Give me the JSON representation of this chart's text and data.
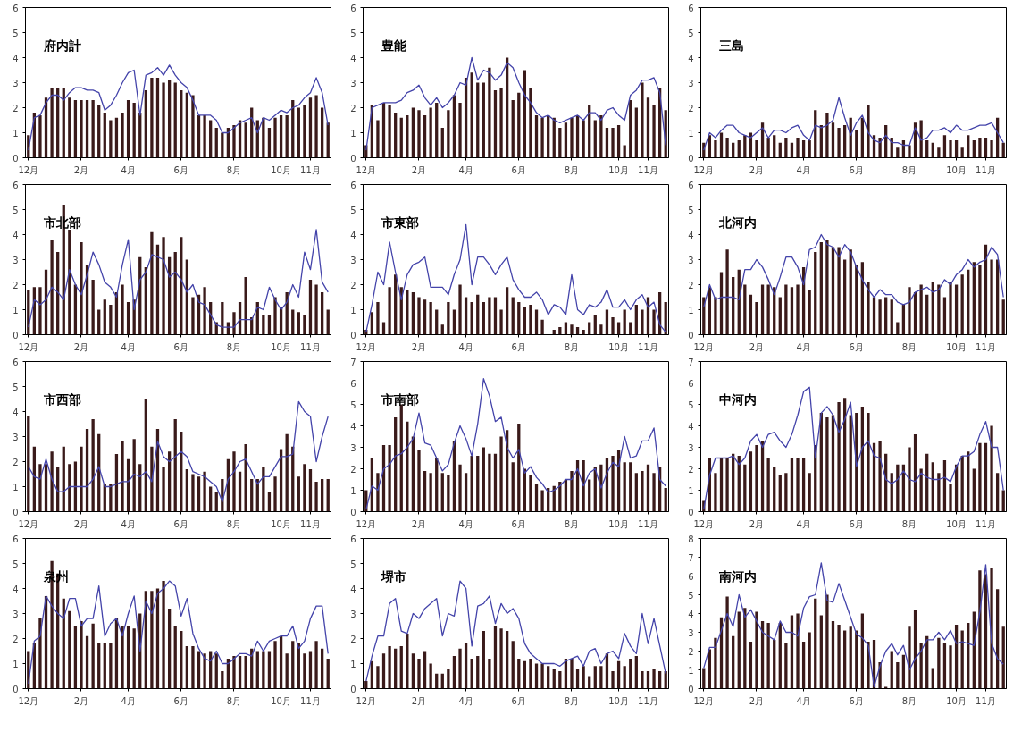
{
  "chart_data": [
    {
      "type": "bar",
      "title": "府内計",
      "categories": [
        "12月",
        null,
        null,
        null,
        null,
        null,
        null,
        null,
        null,
        "2月",
        null,
        null,
        null,
        null,
        null,
        null,
        null,
        "4月",
        null,
        null,
        null,
        null,
        null,
        null,
        null,
        null,
        "6月",
        null,
        null,
        null,
        null,
        null,
        null,
        null,
        null,
        "8月",
        null,
        null,
        null,
        null,
        null,
        null,
        null,
        "10月",
        null,
        null,
        null,
        null,
        "11月",
        null,
        null,
        null
      ],
      "ylim": [
        0,
        6
      ],
      "yticks": [
        0,
        1,
        2,
        3,
        4,
        5,
        6
      ],
      "series": [
        {
          "color": "#3a1a1a",
          "values": [
            0.9,
            1.8,
            1.7,
            2.4,
            2.8,
            2.8,
            2.8,
            2.4,
            2.3,
            2.3,
            2.3,
            2.3,
            2.1,
            1.8,
            1.5,
            1.6,
            1.8,
            2.3,
            2.2,
            1.8,
            2.7,
            3.2,
            3.2,
            3.0,
            3.1,
            3.0,
            2.7,
            2.6,
            2.5,
            1.7,
            1.7,
            1.5,
            1.2,
            1.0,
            1.2,
            1.3,
            1.5,
            1.4,
            2.0,
            1.5,
            1.6,
            1.2,
            1.6,
            1.7,
            1.7,
            2.3,
            2.0,
            2.1,
            2.4,
            2.5,
            2.0,
            1.4
          ]
        },
        {
          "type": "line",
          "color": "#4444aa",
          "values": [
            0.3,
            1.6,
            1.7,
            2.2,
            2.5,
            2.5,
            2.3,
            2.6,
            2.8,
            2.8,
            2.7,
            2.7,
            2.6,
            1.9,
            2.1,
            2.5,
            3.0,
            3.4,
            3.5,
            1.7,
            3.3,
            3.4,
            3.6,
            3.3,
            3.7,
            3.3,
            3.0,
            2.8,
            2.3,
            1.7,
            1.7,
            1.7,
            1.5,
            1.0,
            1.0,
            1.2,
            1.4,
            1.5,
            1.6,
            1.0,
            1.6,
            1.5,
            1.7,
            1.9,
            1.8,
            2.0,
            2.1,
            2.4,
            2.6,
            3.2,
            2.6,
            1.3
          ]
        }
      ]
    },
    {
      "type": "bar",
      "title": "豊能",
      "categories": [
        "12月",
        null,
        null,
        null,
        null,
        null,
        null,
        null,
        null,
        "2月",
        null,
        null,
        null,
        null,
        null,
        null,
        null,
        "4月",
        null,
        null,
        null,
        null,
        null,
        null,
        null,
        null,
        "6月",
        null,
        null,
        null,
        null,
        null,
        null,
        null,
        null,
        "8月",
        null,
        null,
        null,
        null,
        null,
        null,
        null,
        "10月",
        null,
        null,
        null,
        null,
        "11月",
        null,
        null,
        null
      ],
      "ylim": [
        0,
        6
      ],
      "yticks": [
        0,
        1,
        2,
        3,
        4,
        5,
        6
      ],
      "series": [
        {
          "color": "#3a1a1a",
          "values": [
            0.5,
            2.1,
            1.5,
            2.2,
            2.1,
            1.8,
            1.6,
            1.7,
            2.0,
            1.9,
            1.7,
            2.0,
            2.2,
            1.2,
            1.9,
            2.5,
            2.2,
            3.2,
            3.4,
            3.0,
            3.0,
            3.6,
            2.7,
            2.8,
            4.0,
            2.3,
            2.6,
            3.5,
            2.8,
            1.7,
            1.6,
            1.7,
            1.6,
            1.2,
            1.4,
            1.6,
            1.7,
            1.5,
            2.1,
            1.5,
            1.7,
            1.2,
            1.2,
            1.3,
            0.5,
            2.3,
            2.0,
            3.0,
            2.4,
            2.1,
            2.8,
            1.9
          ]
        },
        {
          "type": "line",
          "color": "#4444aa",
          "values": [
            0.3,
            2.0,
            2.1,
            2.2,
            2.2,
            2.2,
            2.3,
            2.6,
            2.7,
            2.9,
            2.4,
            2.1,
            2.4,
            2.0,
            2.2,
            2.5,
            3.0,
            2.9,
            4.0,
            3.1,
            3.5,
            3.4,
            3.1,
            3.3,
            3.8,
            3.6,
            3.0,
            2.5,
            2.2,
            1.8,
            1.6,
            1.7,
            1.5,
            1.4,
            1.5,
            1.6,
            1.7,
            1.5,
            1.8,
            1.8,
            1.5,
            1.9,
            2.0,
            1.7,
            1.5,
            2.5,
            2.7,
            3.1,
            3.1,
            3.2,
            2.6,
            0.5
          ]
        }
      ]
    },
    {
      "type": "bar",
      "title": "三島",
      "categories": [
        "12月",
        null,
        null,
        null,
        null,
        null,
        null,
        null,
        null,
        "2月",
        null,
        null,
        null,
        null,
        null,
        null,
        null,
        "4月",
        null,
        null,
        null,
        null,
        null,
        null,
        null,
        null,
        "6月",
        null,
        null,
        null,
        null,
        null,
        null,
        null,
        null,
        "8月",
        null,
        null,
        null,
        null,
        null,
        null,
        null,
        "10月",
        null,
        null,
        null,
        null,
        "11月",
        null,
        null,
        null
      ],
      "ylim": [
        0,
        6
      ],
      "yticks": [
        0,
        1,
        2,
        3,
        4,
        5,
        6
      ],
      "series": [
        {
          "color": "#3a1a1a",
          "values": [
            0.6,
            0.9,
            0.7,
            1.0,
            0.8,
            0.6,
            0.7,
            0.9,
            1.0,
            0.7,
            1.4,
            0.8,
            0.9,
            0.6,
            0.8,
            0.6,
            0.8,
            0.7,
            0.7,
            1.9,
            1.3,
            1.8,
            1.4,
            1.2,
            1.3,
            1.6,
            1.1,
            1.6,
            2.1,
            0.9,
            0.8,
            1.3,
            0.8,
            0.4,
            0.7,
            0.5,
            1.4,
            1.5,
            0.7,
            0.6,
            0.4,
            0.9,
            0.7,
            0.7,
            0.4,
            0.9,
            0.7,
            0.8,
            0.8,
            0.7,
            1.6,
            0.6
          ]
        },
        {
          "type": "line",
          "color": "#4444aa",
          "values": [
            0.3,
            1.0,
            0.8,
            1.1,
            1.3,
            1.3,
            1.0,
            0.9,
            0.8,
            1.0,
            1.2,
            0.8,
            1.1,
            1.1,
            1.0,
            1.2,
            1.3,
            0.9,
            0.7,
            1.3,
            1.2,
            1.3,
            1.5,
            2.4,
            1.6,
            0.9,
            1.4,
            1.7,
            1.0,
            0.7,
            0.6,
            0.9,
            0.6,
            0.6,
            0.5,
            0.5,
            1.2,
            0.7,
            0.8,
            1.1,
            1.1,
            1.2,
            1.0,
            1.3,
            1.1,
            1.1,
            1.2,
            1.3,
            1.3,
            1.4,
            1.0,
            0.6
          ]
        }
      ]
    },
    {
      "type": "bar",
      "title": "市北部",
      "categories": [
        "12月",
        null,
        null,
        null,
        null,
        null,
        null,
        null,
        null,
        "2月",
        null,
        null,
        null,
        null,
        null,
        null,
        null,
        "4月",
        null,
        null,
        null,
        null,
        null,
        null,
        null,
        null,
        "6月",
        null,
        null,
        null,
        null,
        null,
        null,
        null,
        null,
        "8月",
        null,
        null,
        null,
        null,
        null,
        null,
        null,
        "10月",
        null,
        null,
        null,
        null,
        "11月",
        null,
        null,
        null
      ],
      "ylim": [
        0,
        6
      ],
      "yticks": [
        0,
        1,
        2,
        3,
        4,
        5,
        6
      ],
      "series": [
        {
          "color": "#3a1a1a",
          "values": [
            1.8,
            1.9,
            1.9,
            2.6,
            3.8,
            3.3,
            5.2,
            4.2,
            2.0,
            3.7,
            2.8,
            2.2,
            1.0,
            1.4,
            1.2,
            1.7,
            2.0,
            1.3,
            1.4,
            3.1,
            2.7,
            4.1,
            3.6,
            3.9,
            3.1,
            3.3,
            3.9,
            3.0,
            1.5,
            1.6,
            1.9,
            1.3,
            0.5,
            1.3,
            0.5,
            0.9,
            1.3,
            2.3,
            0.7,
            1.3,
            0.8,
            0.8,
            1.5,
            1.1,
            1.7,
            1.0,
            0.9,
            0.8,
            2.2,
            2.0,
            1.7,
            1.0
          ]
        },
        {
          "type": "line",
          "color": "#4444aa",
          "values": [
            0.3,
            1.4,
            1.2,
            1.4,
            1.9,
            1.7,
            1.4,
            2.6,
            2.0,
            1.6,
            2.4,
            3.3,
            2.8,
            2.1,
            1.9,
            1.5,
            2.8,
            3.8,
            1.0,
            2.2,
            2.5,
            3.2,
            3.1,
            3.0,
            2.3,
            2.5,
            2.2,
            1.7,
            2.0,
            1.3,
            1.2,
            0.8,
            0.4,
            0.3,
            0.3,
            0.3,
            0.6,
            0.6,
            0.6,
            1.1,
            1.0,
            1.9,
            1.4,
            1.0,
            1.3,
            2.0,
            1.5,
            3.3,
            2.6,
            4.2,
            2.1,
            1.7
          ]
        }
      ]
    },
    {
      "type": "bar",
      "title": "市東部",
      "categories": [
        "12月",
        null,
        null,
        null,
        null,
        null,
        null,
        null,
        null,
        "2月",
        null,
        null,
        null,
        null,
        null,
        null,
        null,
        "4月",
        null,
        null,
        null,
        null,
        null,
        null,
        null,
        null,
        "6月",
        null,
        null,
        null,
        null,
        null,
        null,
        null,
        null,
        "8月",
        null,
        null,
        null,
        null,
        null,
        null,
        null,
        "10月",
        null,
        null,
        null,
        null,
        "11月",
        null,
        null,
        null
      ],
      "ylim": [
        0,
        6
      ],
      "yticks": [
        0,
        1,
        2,
        3,
        4,
        5,
        6
      ],
      "series": [
        {
          "color": "#3a1a1a",
          "values": [
            0.2,
            0.9,
            1.3,
            0.5,
            1.9,
            2.4,
            1.9,
            1.8,
            1.7,
            1.5,
            1.4,
            1.3,
            1.0,
            0.4,
            1.3,
            1.0,
            2.0,
            1.5,
            1.3,
            1.6,
            1.3,
            1.5,
            1.5,
            1.0,
            1.9,
            1.5,
            1.3,
            1.1,
            1.2,
            1.0,
            0.6,
            0.0,
            0.2,
            0.3,
            0.5,
            0.4,
            0.3,
            0.2,
            0.5,
            0.8,
            0.4,
            1.0,
            0.7,
            0.5,
            1.0,
            0.5,
            1.2,
            1.0,
            1.5,
            1.0,
            1.7,
            1.3
          ]
        },
        {
          "type": "line",
          "color": "#4444aa",
          "values": [
            0.1,
            1.2,
            2.5,
            2.0,
            3.7,
            2.5,
            1.4,
            2.4,
            2.8,
            2.9,
            3.1,
            1.9,
            1.9,
            1.9,
            1.6,
            2.4,
            3.0,
            4.4,
            2.0,
            3.1,
            3.1,
            2.8,
            2.4,
            2.8,
            3.1,
            2.2,
            1.8,
            1.5,
            1.5,
            1.7,
            1.4,
            0.8,
            1.2,
            1.1,
            0.8,
            2.4,
            1.0,
            0.8,
            1.2,
            1.1,
            1.3,
            1.8,
            1.1,
            1.1,
            1.4,
            1.0,
            1.4,
            1.6,
            1.1,
            1.3,
            0.4,
            0.1
          ]
        }
      ]
    },
    {
      "type": "bar",
      "title": "北河内",
      "categories": [
        "12月",
        null,
        null,
        null,
        null,
        null,
        null,
        null,
        null,
        "2月",
        null,
        null,
        null,
        null,
        null,
        null,
        null,
        "4月",
        null,
        null,
        null,
        null,
        null,
        null,
        null,
        null,
        "6月",
        null,
        null,
        null,
        null,
        null,
        null,
        null,
        null,
        "8月",
        null,
        null,
        null,
        null,
        null,
        null,
        null,
        "10月",
        null,
        null,
        null,
        null,
        "11月",
        null,
        null,
        null
      ],
      "ylim": [
        0,
        6
      ],
      "yticks": [
        0,
        1,
        2,
        3,
        4,
        5,
        6
      ],
      "series": [
        {
          "color": "#3a1a1a",
          "values": [
            1.5,
            1.9,
            1.5,
            2.5,
            3.4,
            2.3,
            2.6,
            2.0,
            1.6,
            1.3,
            2.0,
            2.0,
            1.9,
            1.5,
            2.0,
            1.9,
            2.0,
            2.7,
            1.8,
            3.3,
            3.7,
            3.8,
            3.5,
            3.5,
            3.0,
            3.4,
            2.8,
            2.9,
            2.1,
            1.5,
            1.4,
            1.5,
            1.4,
            0.5,
            1.2,
            1.9,
            1.7,
            2.0,
            1.6,
            2.1,
            2.0,
            1.5,
            2.1,
            2.0,
            2.4,
            2.6,
            2.9,
            2.8,
            3.6,
            3.0,
            3.0,
            1.4
          ]
        },
        {
          "type": "line",
          "color": "#4444aa",
          "values": [
            1.1,
            2.0,
            1.4,
            1.5,
            1.5,
            1.5,
            1.4,
            2.6,
            2.6,
            3.0,
            2.7,
            2.2,
            1.6,
            2.3,
            3.1,
            3.1,
            2.7,
            2.0,
            3.4,
            3.5,
            4.0,
            3.6,
            3.5,
            3.1,
            3.6,
            3.3,
            2.7,
            2.2,
            1.8,
            1.5,
            1.8,
            1.6,
            1.6,
            1.3,
            1.2,
            1.3,
            1.7,
            1.8,
            1.9,
            1.7,
            1.8,
            2.2,
            2.0,
            2.4,
            2.6,
            3.0,
            2.7,
            2.9,
            3.0,
            3.5,
            3.2,
            1.5
          ]
        }
      ]
    },
    {
      "type": "bar",
      "title": "市西部",
      "categories": [
        "12月",
        null,
        null,
        null,
        null,
        null,
        null,
        null,
        null,
        "2月",
        null,
        null,
        null,
        null,
        null,
        null,
        null,
        "4月",
        null,
        null,
        null,
        null,
        null,
        null,
        null,
        null,
        "6月",
        null,
        null,
        null,
        null,
        null,
        null,
        null,
        null,
        "8月",
        null,
        null,
        null,
        null,
        null,
        null,
        null,
        "10月",
        null,
        null,
        null,
        null,
        "11月",
        null,
        null,
        null
      ],
      "ylim": [
        0,
        6
      ],
      "yticks": [
        0,
        1,
        2,
        3,
        4,
        5,
        6
      ],
      "series": [
        {
          "color": "#3a1a1a",
          "values": [
            3.8,
            2.6,
            1.9,
            1.9,
            2.4,
            1.8,
            2.6,
            1.9,
            2.0,
            2.6,
            3.3,
            3.7,
            3.1,
            1.1,
            1.1,
            2.3,
            2.8,
            2.1,
            2.9,
            1.9,
            4.5,
            2.6,
            3.3,
            1.8,
            2.4,
            3.7,
            3.2,
            1.7,
            1.5,
            1.4,
            1.6,
            1.0,
            0.8,
            1.3,
            2.1,
            2.4,
            1.6,
            2.7,
            1.3,
            1.3,
            1.8,
            0.8,
            1.4,
            2.5,
            3.1,
            2.6,
            1.4,
            1.9,
            1.7,
            1.2,
            1.3,
            1.3
          ]
        },
        {
          "type": "line",
          "color": "#4444aa",
          "values": [
            1.8,
            1.4,
            1.3,
            2.1,
            1.3,
            0.8,
            0.8,
            1.0,
            1.0,
            1.0,
            1.0,
            1.3,
            1.8,
            1.0,
            1.0,
            1.1,
            1.2,
            1.2,
            1.5,
            1.4,
            1.6,
            1.2,
            2.8,
            2.2,
            2.0,
            2.2,
            2.4,
            2.2,
            1.6,
            1.5,
            1.4,
            1.2,
            1.0,
            0.4,
            1.3,
            1.6,
            2.0,
            2.1,
            1.6,
            1.1,
            1.4,
            1.4,
            1.8,
            2.2,
            2.2,
            2.3,
            4.4,
            4.0,
            3.8,
            2.0,
            3.0,
            3.8
          ]
        }
      ]
    },
    {
      "type": "bar",
      "title": "市南部",
      "categories": [
        "12月",
        null,
        null,
        null,
        null,
        null,
        null,
        null,
        null,
        "2月",
        null,
        null,
        null,
        null,
        null,
        null,
        null,
        "4月",
        null,
        null,
        null,
        null,
        null,
        null,
        null,
        null,
        "6月",
        null,
        null,
        null,
        null,
        null,
        null,
        null,
        null,
        "8月",
        null,
        null,
        null,
        null,
        null,
        null,
        null,
        "10月",
        null,
        null,
        null,
        null,
        "11月",
        null,
        null,
        null
      ],
      "ylim": [
        0,
        7
      ],
      "yticks": [
        0,
        1,
        2,
        3,
        4,
        5,
        6,
        7
      ],
      "series": [
        {
          "color": "#3a1a1a",
          "values": [
            1.0,
            2.5,
            1.8,
            3.1,
            3.1,
            4.4,
            5.0,
            4.2,
            3.5,
            2.9,
            1.9,
            1.8,
            2.5,
            1.8,
            1.7,
            3.3,
            2.2,
            1.8,
            2.6,
            2.6,
            3.0,
            2.7,
            2.7,
            3.5,
            3.8,
            2.3,
            4.1,
            2.0,
            1.7,
            1.3,
            1.0,
            1.1,
            1.2,
            1.4,
            1.5,
            1.9,
            2.4,
            2.4,
            1.5,
            2.1,
            2.2,
            2.5,
            2.6,
            2.9,
            2.3,
            2.3,
            1.8,
            1.9,
            2.2,
            1.8,
            2.1,
            1.1
          ]
        },
        {
          "type": "line",
          "color": "#4444aa",
          "values": [
            0.1,
            1.2,
            1.0,
            2.0,
            2.2,
            2.6,
            2.7,
            3.0,
            3.4,
            4.6,
            3.2,
            3.1,
            2.5,
            1.9,
            2.2,
            3.2,
            4.0,
            3.4,
            2.6,
            4.1,
            6.2,
            5.4,
            4.2,
            4.4,
            3.0,
            2.5,
            2.9,
            1.8,
            2.1,
            1.6,
            1.3,
            0.9,
            1.0,
            1.2,
            1.5,
            1.5,
            2.0,
            1.2,
            1.8,
            2.0,
            1.1,
            1.8,
            2.3,
            2.1,
            3.5,
            2.5,
            2.6,
            3.3,
            3.3,
            3.9,
            1.5,
            1.2
          ]
        }
      ]
    },
    {
      "type": "bar",
      "title": "中河内",
      "categories": [
        "12月",
        null,
        null,
        null,
        null,
        null,
        null,
        null,
        null,
        "2月",
        null,
        null,
        null,
        null,
        null,
        null,
        null,
        "4月",
        null,
        null,
        null,
        null,
        null,
        null,
        null,
        null,
        "6月",
        null,
        null,
        null,
        null,
        null,
        null,
        null,
        null,
        "8月",
        null,
        null,
        null,
        null,
        null,
        null,
        null,
        "10月",
        null,
        null,
        null,
        null,
        "11月",
        null,
        null,
        null
      ],
      "ylim": [
        0,
        7
      ],
      "yticks": [
        0,
        1,
        2,
        3,
        4,
        5,
        6,
        7
      ],
      "series": [
        {
          "color": "#3a1a1a",
          "values": [
            0.5,
            2.5,
            1.8,
            2.5,
            2.5,
            2.7,
            2.6,
            2.2,
            2.8,
            3.1,
            3.3,
            2.5,
            2.1,
            1.7,
            1.8,
            2.5,
            2.5,
            2.5,
            1.8,
            3.1,
            4.6,
            4.4,
            4.5,
            5.1,
            5.3,
            4.5,
            4.6,
            4.9,
            4.6,
            3.2,
            3.3,
            2.7,
            1.8,
            2.2,
            2.2,
            3.0,
            3.6,
            2.0,
            2.7,
            2.3,
            1.8,
            2.4,
            1.3,
            2.2,
            2.6,
            2.8,
            2.0,
            3.2,
            3.2,
            4.0,
            1.8,
            1.0
          ]
        },
        {
          "type": "line",
          "color": "#4444aa",
          "values": [
            0.1,
            1.7,
            2.5,
            2.5,
            2.5,
            2.6,
            2.2,
            2.5,
            3.3,
            3.6,
            3.0,
            3.6,
            3.7,
            3.3,
            3.0,
            3.6,
            4.5,
            5.6,
            5.8,
            2.5,
            4.6,
            4.9,
            4.5,
            3.7,
            4.3,
            5.1,
            2.1,
            3.0,
            3.3,
            2.6,
            2.5,
            1.5,
            1.3,
            1.5,
            1.9,
            1.5,
            1.4,
            1.8,
            1.6,
            1.5,
            1.5,
            1.6,
            1.4,
            2.1,
            2.6,
            2.6,
            2.8,
            3.6,
            4.2,
            3.0,
            3.0,
            1.0
          ]
        }
      ]
    },
    {
      "type": "bar",
      "title": "泉州",
      "categories": [
        "12月",
        null,
        null,
        null,
        null,
        null,
        null,
        null,
        null,
        "2月",
        null,
        null,
        null,
        null,
        null,
        null,
        null,
        "4月",
        null,
        null,
        null,
        null,
        null,
        null,
        null,
        null,
        "6月",
        null,
        null,
        null,
        null,
        null,
        null,
        null,
        null,
        "8月",
        null,
        null,
        null,
        null,
        null,
        null,
        null,
        "10月",
        null,
        null,
        null,
        null,
        "11月",
        null,
        null,
        null
      ],
      "ylim": [
        0,
        6
      ],
      "yticks": [
        0,
        1,
        2,
        3,
        4,
        5,
        6
      ],
      "series": [
        {
          "color": "#3a1a1a",
          "values": [
            1.5,
            1.8,
            2.8,
            3.7,
            5.1,
            4.6,
            3.6,
            3.1,
            2.5,
            2.7,
            2.1,
            2.6,
            1.8,
            1.8,
            1.8,
            2.8,
            2.5,
            2.5,
            2.4,
            3.0,
            3.9,
            3.9,
            4.0,
            4.3,
            3.2,
            2.5,
            2.3,
            1.7,
            1.7,
            1.5,
            1.4,
            1.5,
            1.4,
            0.7,
            1.2,
            1.3,
            1.3,
            1.3,
            1.6,
            1.5,
            1.5,
            1.5,
            1.9,
            2.1,
            1.4,
            1.9,
            1.8,
            1.4,
            1.5,
            1.9,
            1.6,
            1.2
          ]
        },
        {
          "type": "line",
          "color": "#4444aa",
          "values": [
            0.2,
            1.9,
            2.1,
            3.7,
            3.3,
            3.0,
            2.8,
            3.6,
            3.6,
            2.5,
            2.8,
            2.8,
            4.1,
            2.1,
            2.6,
            2.8,
            2.1,
            3.0,
            3.7,
            1.5,
            3.5,
            3.0,
            3.8,
            4.0,
            4.3,
            4.1,
            2.9,
            3.6,
            2.2,
            1.6,
            1.2,
            1.1,
            1.5,
            1.0,
            1.0,
            1.2,
            1.4,
            1.4,
            1.3,
            1.9,
            1.5,
            1.9,
            2.0,
            2.1,
            2.1,
            2.5,
            1.6,
            1.9,
            2.8,
            3.3,
            3.3,
            1.4
          ]
        }
      ]
    },
    {
      "type": "bar",
      "title": "堺市",
      "categories": [
        "12月",
        null,
        null,
        null,
        null,
        null,
        null,
        null,
        null,
        "2月",
        null,
        null,
        null,
        null,
        null,
        null,
        null,
        "4月",
        null,
        null,
        null,
        null,
        null,
        null,
        null,
        null,
        "6月",
        null,
        null,
        null,
        null,
        null,
        null,
        null,
        null,
        "8月",
        null,
        null,
        null,
        null,
        null,
        null,
        null,
        "10月",
        null,
        null,
        null,
        null,
        "11月",
        null,
        null,
        null
      ],
      "ylim": [
        0,
        6
      ],
      "yticks": [
        0,
        1,
        2,
        3,
        4,
        5,
        6
      ],
      "series": [
        {
          "color": "#3a1a1a",
          "values": [
            0.3,
            1.1,
            0.9,
            1.4,
            1.7,
            1.6,
            1.7,
            2.2,
            1.4,
            1.2,
            1.5,
            1.0,
            0.6,
            0.6,
            0.8,
            1.3,
            1.6,
            1.8,
            1.2,
            1.3,
            2.3,
            1.2,
            2.5,
            2.4,
            2.3,
            1.9,
            1.2,
            1.1,
            1.2,
            1.0,
            1.0,
            0.9,
            0.8,
            0.7,
            1.2,
            1.2,
            0.8,
            0.9,
            0.5,
            0.9,
            0.9,
            1.4,
            0.7,
            1.1,
            0.9,
            1.2,
            1.3,
            0.7,
            0.7,
            0.8,
            0.7,
            0.7
          ]
        },
        {
          "type": "line",
          "color": "#4444aa",
          "values": [
            0.3,
            1.3,
            2.1,
            2.1,
            3.4,
            3.6,
            2.3,
            2.2,
            3.0,
            2.8,
            3.2,
            3.4,
            3.6,
            2.1,
            3.0,
            2.9,
            4.3,
            4.0,
            1.7,
            3.3,
            3.4,
            3.7,
            2.6,
            3.4,
            3.0,
            3.2,
            2.8,
            1.8,
            1.4,
            1.2,
            1.0,
            1.0,
            1.0,
            0.9,
            1.1,
            1.2,
            1.3,
            0.9,
            1.5,
            1.6,
            1.0,
            1.4,
            1.5,
            1.2,
            2.2,
            1.7,
            1.4,
            3.0,
            1.8,
            2.8,
            1.7,
            0.6
          ]
        }
      ]
    },
    {
      "type": "bar",
      "title": "南河内",
      "categories": [
        "12月",
        null,
        null,
        null,
        null,
        null,
        null,
        null,
        null,
        "2月",
        null,
        null,
        null,
        null,
        null,
        null,
        null,
        "4月",
        null,
        null,
        null,
        null,
        null,
        null,
        null,
        null,
        "6月",
        null,
        null,
        null,
        null,
        null,
        null,
        null,
        null,
        "8月",
        null,
        null,
        null,
        null,
        null,
        null,
        null,
        "10月",
        null,
        null,
        null,
        null,
        "11月",
        null,
        null,
        null
      ],
      "ylim": [
        0,
        8
      ],
      "yticks": [
        0,
        1,
        2,
        3,
        4,
        5,
        6,
        7,
        8
      ],
      "series": [
        {
          "color": "#3a1a1a",
          "values": [
            1.1,
            2.1,
            2.7,
            3.8,
            4.9,
            2.8,
            4.1,
            4.3,
            2.5,
            4.1,
            3.6,
            3.5,
            2.6,
            3.5,
            2.4,
            3.9,
            4.0,
            2.5,
            3.0,
            4.8,
            3.9,
            5.0,
            3.6,
            3.4,
            3.1,
            3.3,
            3.1,
            4.0,
            2.5,
            2.6,
            1.4,
            0.1,
            2.0,
            1.4,
            1.8,
            3.3,
            4.2,
            2.4,
            2.8,
            1.1,
            2.7,
            2.4,
            2.3,
            3.4,
            3.1,
            3.5,
            4.1,
            6.3,
            6.1,
            6.4,
            5.3,
            3.3
          ]
        },
        {
          "type": "line",
          "color": "#4444aa",
          "values": [
            1.1,
            2.2,
            2.2,
            3.1,
            4.0,
            3.3,
            5.0,
            3.8,
            4.2,
            3.6,
            3.0,
            2.8,
            2.6,
            3.6,
            3.0,
            3.0,
            2.8,
            4.3,
            4.9,
            5.0,
            6.7,
            4.7,
            4.6,
            5.6,
            4.7,
            3.8,
            2.9,
            2.7,
            2.3,
            0.1,
            1.2,
            2.0,
            2.4,
            1.8,
            2.3,
            1.0,
            1.6,
            2.0,
            2.6,
            2.6,
            3.0,
            2.6,
            3.1,
            2.4,
            2.5,
            2.4,
            2.3,
            4.1,
            6.6,
            2.4,
            1.6,
            1.3
          ]
        }
      ]
    }
  ]
}
